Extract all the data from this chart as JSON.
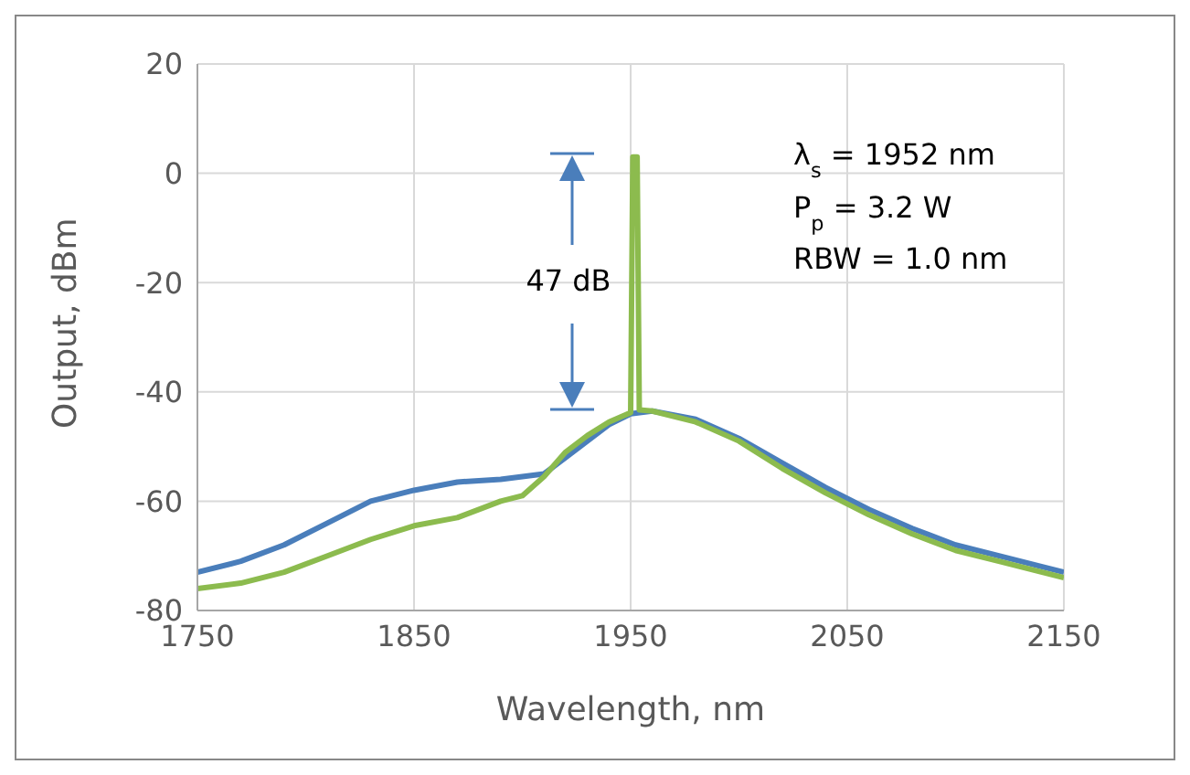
{
  "chart_data": {
    "type": "line",
    "xlabel": "Wavelength, nm",
    "ylabel": "Output, dBm",
    "xlim": [
      1750,
      2150
    ],
    "xticks": [
      1750,
      1850,
      1950,
      2050,
      2150
    ],
    "ylim": [
      -80,
      20
    ],
    "yticks": [
      -80,
      -60,
      -40,
      -20,
      0,
      20
    ],
    "grid": true,
    "legend": false,
    "marker": "none",
    "line_style": "solid",
    "annotations": [
      "47 dB",
      "λ$_{s}$ = 1952 nm",
      "P$_{p}$ = 3.2 W",
      "RBW = 1.0 nm"
    ],
    "series": [
      {
        "color": "#4a7ebb",
        "x": [
          1750,
          1770,
          1790,
          1810,
          1830,
          1850,
          1870,
          1890,
          1900,
          1910,
          1920,
          1930,
          1940,
          1950,
          1960,
          1980,
          2000,
          2020,
          2040,
          2060,
          2080,
          2100,
          2120,
          2140,
          2150
        ],
        "values": [
          -73,
          -71,
          -68,
          -64,
          -60,
          -58,
          -56.5,
          -56,
          -55.5,
          -55,
          -52,
          -49,
          -46,
          -44,
          -43.5,
          -45,
          -48.5,
          -53,
          -57.5,
          -61.5,
          -65,
          -68,
          -70,
          -72,
          -73
        ]
      },
      {
        "color": "#8cbb4e",
        "x": [
          1750,
          1770,
          1790,
          1810,
          1830,
          1850,
          1870,
          1890,
          1900,
          1910,
          1920,
          1930,
          1940,
          1950,
          1951,
          1953,
          1954,
          1960,
          1980,
          2000,
          2020,
          2040,
          2060,
          2080,
          2100,
          2120,
          2140,
          2150
        ],
        "values": [
          -76,
          -75,
          -73,
          -70,
          -67,
          -64.5,
          -63,
          -60,
          -59,
          -55.5,
          -51,
          -48,
          -45.5,
          -43.8,
          3,
          3,
          -43.3,
          -43.5,
          -45.5,
          -49,
          -54,
          -58.5,
          -62.5,
          -66,
          -69,
          -71,
          -73,
          -74
        ]
      }
    ]
  }
}
